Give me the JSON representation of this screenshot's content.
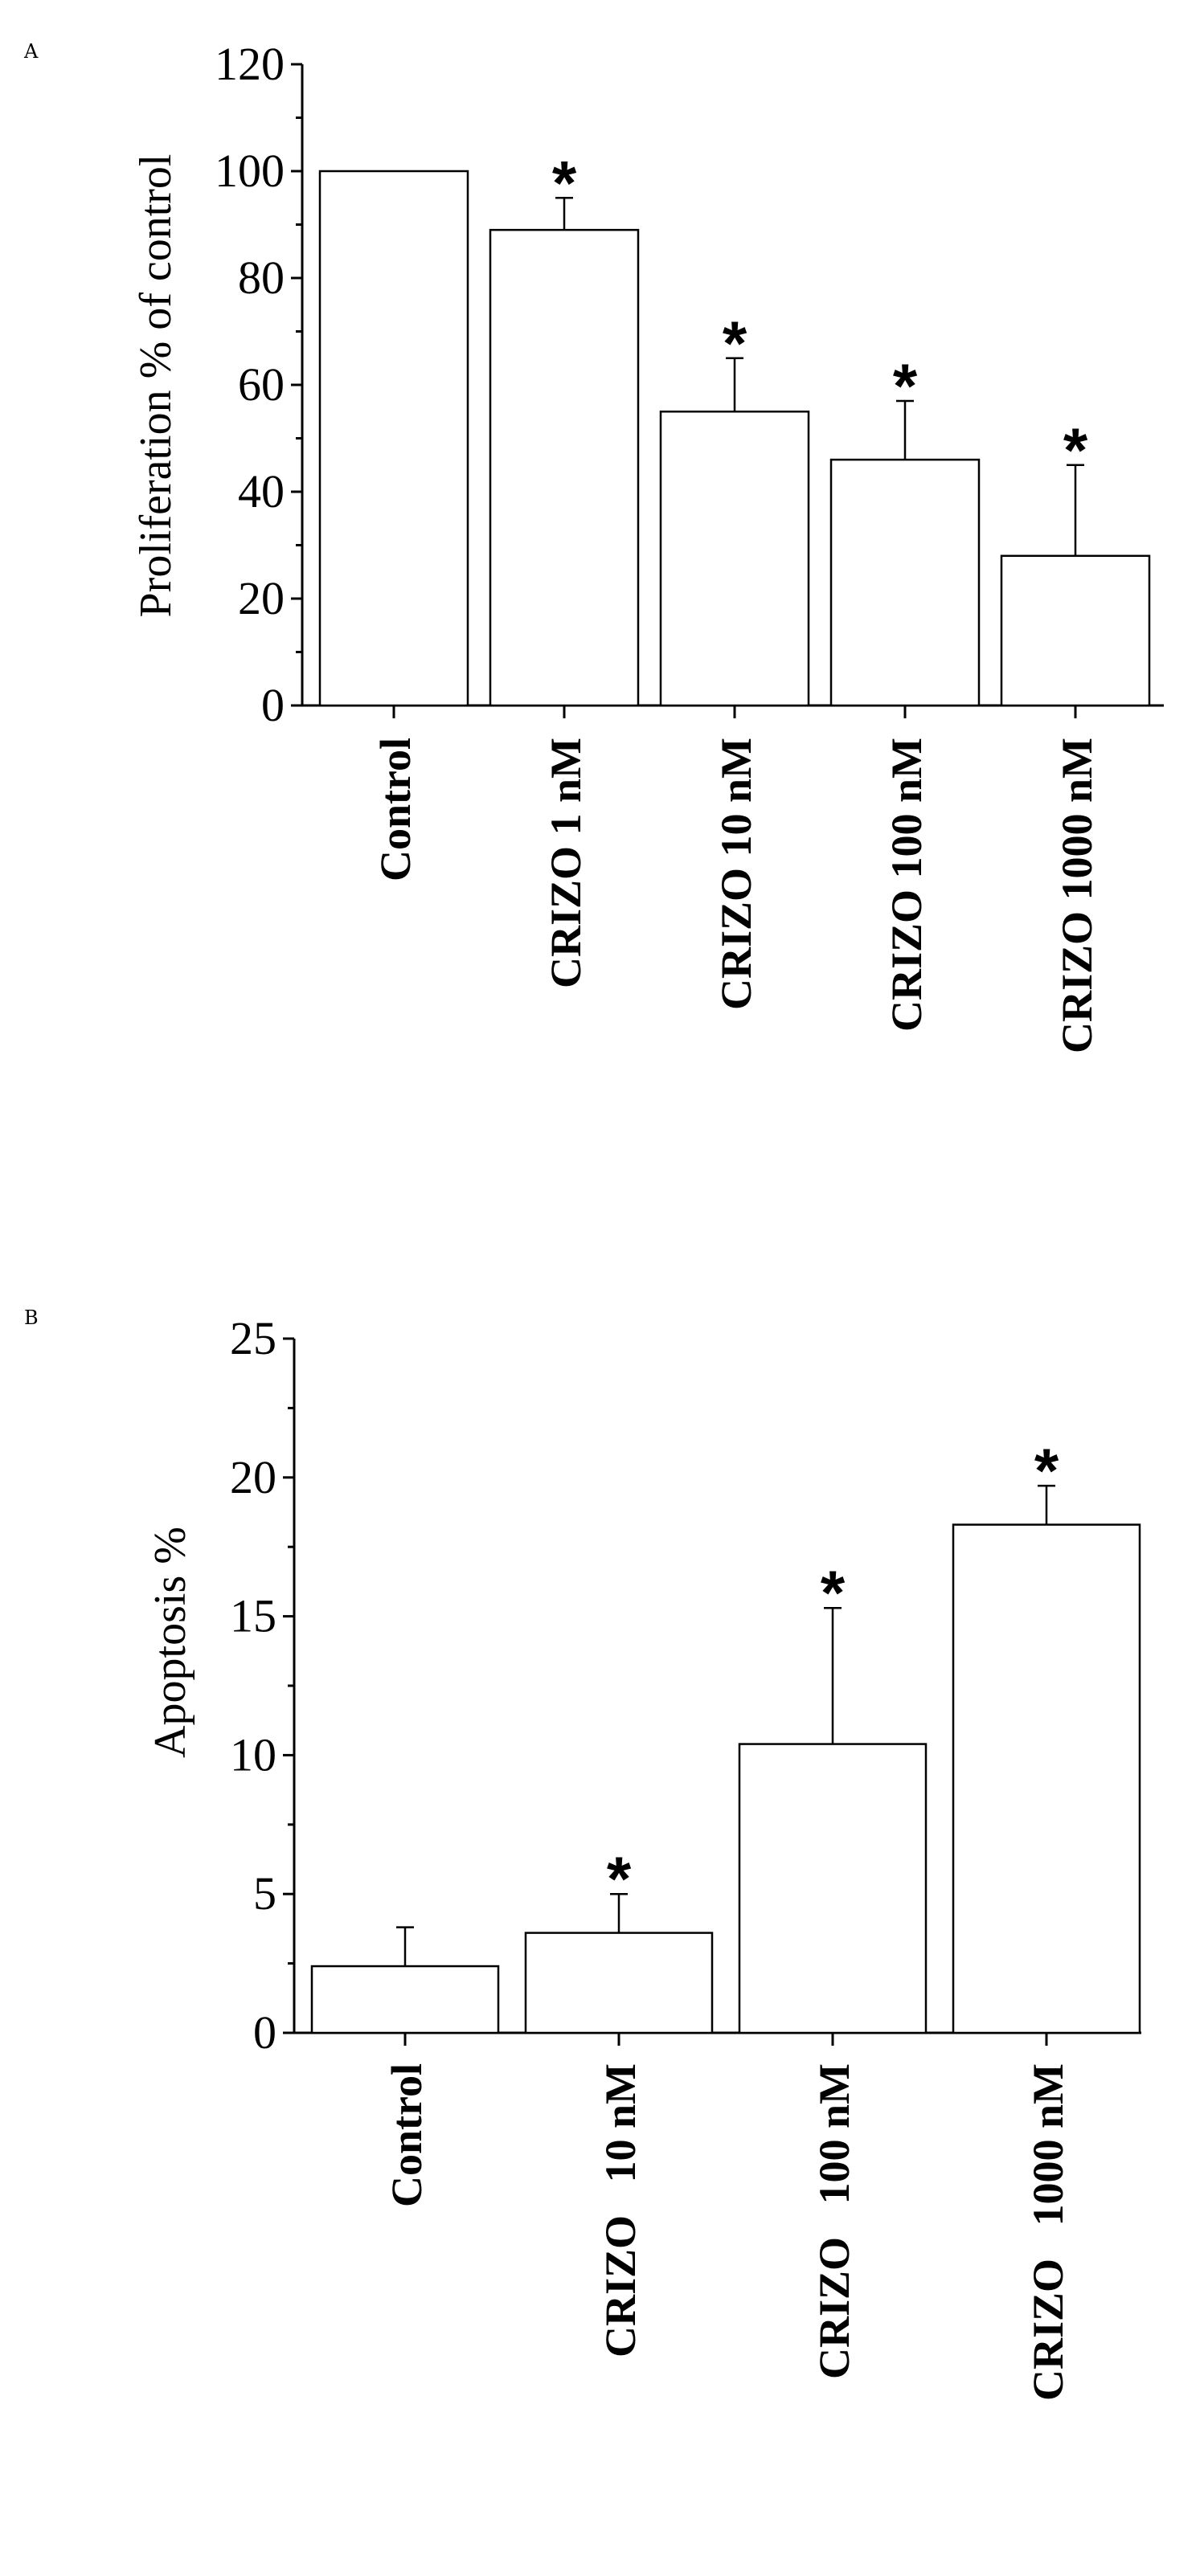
{
  "chart_data": [
    {
      "type": "bar",
      "panel_label": "A",
      "ylabel": "Proliferation % of control",
      "categories": [
        "Control",
        "CRIZO 1 nM",
        "CRIZO 10 nM",
        "CRIZO 100 nM",
        "CRIZO 1000 nM"
      ],
      "values": [
        100,
        89,
        55,
        46,
        28
      ],
      "error_upper": [
        0,
        6,
        10,
        11,
        17
      ],
      "significance": [
        "",
        "*",
        "*",
        "*",
        "*"
      ],
      "ylim": [
        0,
        120
      ],
      "yticks": [
        0,
        20,
        40,
        60,
        80,
        100,
        120
      ],
      "grid": false,
      "bar_color": "#ffffff"
    },
    {
      "type": "bar",
      "panel_label": "B",
      "ylabel": "Apoptosis %",
      "categories": [
        "Control",
        "CRIZO   10 nM",
        "CRIZO   100 nM",
        "CRIZO   1000 nM"
      ],
      "values": [
        2.4,
        3.6,
        10.4,
        18.3
      ],
      "error_upper": [
        1.4,
        1.4,
        4.9,
        1.4
      ],
      "significance": [
        "",
        "*",
        "*",
        "*"
      ],
      "ylim": [
        0,
        25
      ],
      "yticks": [
        0,
        5,
        10,
        15,
        20,
        25
      ],
      "grid": false,
      "bar_color": "#ffffff"
    }
  ]
}
